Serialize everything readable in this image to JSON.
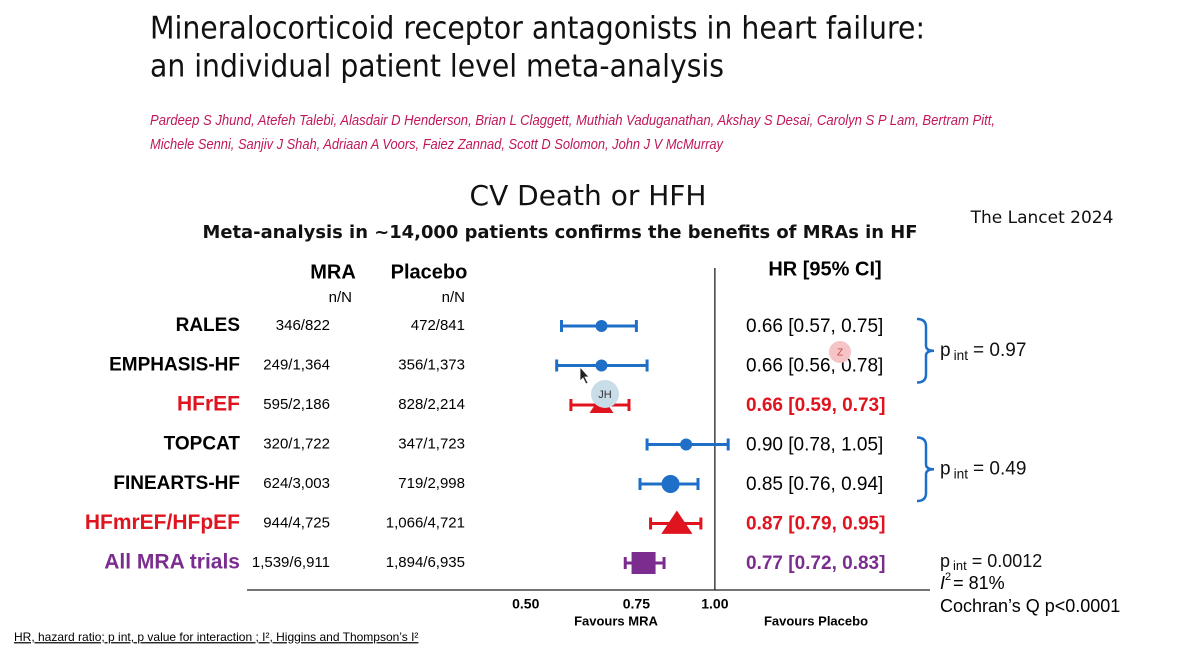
{
  "header": {
    "title_line1": "Mineralocorticoid receptor antagonists in heart failure:",
    "title_line2": "an individual patient level meta-analysis",
    "authors_line1": "Pardeep S Jhund, Atefeh Talebi, Alasdair D Henderson, Brian L Claggett, Muthiah Vaduganathan, Akshay S Desai, Carolyn S P Lam, Bertram Pitt,",
    "authors_line2": "Michele Senni, Sanjiv J Shah, Adriaan A Voors, Faiez Zannad, Scott D Solomon, John J V McMurray"
  },
  "overlays": {
    "avatar_z": "Z",
    "avatar_jh": "JH"
  },
  "chart_data": {
    "type": "forest",
    "title": "CV Death or HFH",
    "subtitle": "Meta-analysis in ~14,000 patients confirms the benefits of MRAs in HF",
    "source": "The Lancet 2024",
    "column_headers": {
      "mra": "MRA",
      "placebo": "Placebo",
      "mra_unit": "n/N",
      "placebo_unit": "n/N",
      "hr": "HR [95% CI]"
    },
    "log_scale": true,
    "xlim": [
      0.18,
      2.2
    ],
    "reference": 1,
    "xticks": [
      {
        "value": 0.5,
        "label": "0.50"
      },
      {
        "value": 0.75,
        "label": "0.75"
      },
      {
        "value": 1,
        "label": "1.00"
      }
    ],
    "xlabel_left": "Favours MRA",
    "xlabel_right": "Favours Placebo",
    "rows": [
      {
        "name": "RALES",
        "mra": "346/822",
        "placebo": "472/841",
        "hr": 0.66,
        "lo": 0.57,
        "hi": 0.75,
        "hr_label": "0.66 [0.57, 0.75]",
        "marker": "circle",
        "marker_color": "#1f6fc8",
        "text_color": "#000000",
        "pooled": false
      },
      {
        "name": "EMPHASIS-HF",
        "mra": "249/1,364",
        "placebo": "356/1,373",
        "hr": 0.66,
        "lo": 0.56,
        "hi": 0.78,
        "hr_label": "0.66 [0.56, 0.78]",
        "marker": "circle",
        "marker_color": "#1f6fc8",
        "text_color": "#000000",
        "pooled": false
      },
      {
        "name": "HFrEF",
        "mra": "595/2,186",
        "placebo": "828/2,214",
        "hr": 0.66,
        "lo": 0.59,
        "hi": 0.73,
        "hr_label": "0.66 [0.59, 0.73]",
        "marker": "triangle",
        "marker_color": "#e0141e",
        "text_color": "#e0141e",
        "pooled": true
      },
      {
        "name": "TOPCAT",
        "mra": "320/1,722",
        "placebo": "347/1,723",
        "hr": 0.9,
        "lo": 0.78,
        "hi": 1.05,
        "hr_label": "0.90 [0.78, 1.05]",
        "marker": "circle",
        "marker_color": "#1f6fc8",
        "text_color": "#000000",
        "pooled": false
      },
      {
        "name": "FINEARTS-HF",
        "mra": "624/3,003",
        "placebo": "719/2,998",
        "hr": 0.85,
        "lo": 0.76,
        "hi": 0.94,
        "hr_label": "0.85 [0.76, 0.94]",
        "marker": "circle",
        "marker_color": "#1f6fc8",
        "text_color": "#000000",
        "pooled": false
      },
      {
        "name": "HFmrEF/HFpEF",
        "mra": "944/4,725",
        "placebo": "1,066/4,721",
        "hr": 0.87,
        "lo": 0.79,
        "hi": 0.95,
        "hr_label": "0.87 [0.79, 0.95]",
        "marker": "triangle",
        "marker_color": "#e0141e",
        "text_color": "#e0141e",
        "pooled": true
      },
      {
        "name": "All MRA trials",
        "mra": "1,539/6,911",
        "placebo": "1,894/6,935",
        "hr": 0.77,
        "lo": 0.72,
        "hi": 0.83,
        "hr_label": "0.77 [0.72, 0.83]",
        "marker": "square",
        "marker_color": "#7b2d8f",
        "text_color": "#7b2d8f",
        "pooled": true
      }
    ],
    "interactions": [
      {
        "p": "p",
        "sub": "int",
        "text": "= 0.97",
        "color": "#1f6fc8"
      },
      {
        "p": "p",
        "sub": "int",
        "text": "= 0.49",
        "color": "#1f6fc8"
      }
    ],
    "overall_stats": {
      "p": "p",
      "sub": "int",
      "text": "= 0.0012",
      "i2_symbol": "I",
      "i2_sup": "2",
      "i2_text": "= 81%",
      "cochran": "Cochran’s Q p<0.0001"
    },
    "footnote": "HR, hazard ratio; p int, p value for interaction ; I², Higgins and Thompson’s I²"
  }
}
